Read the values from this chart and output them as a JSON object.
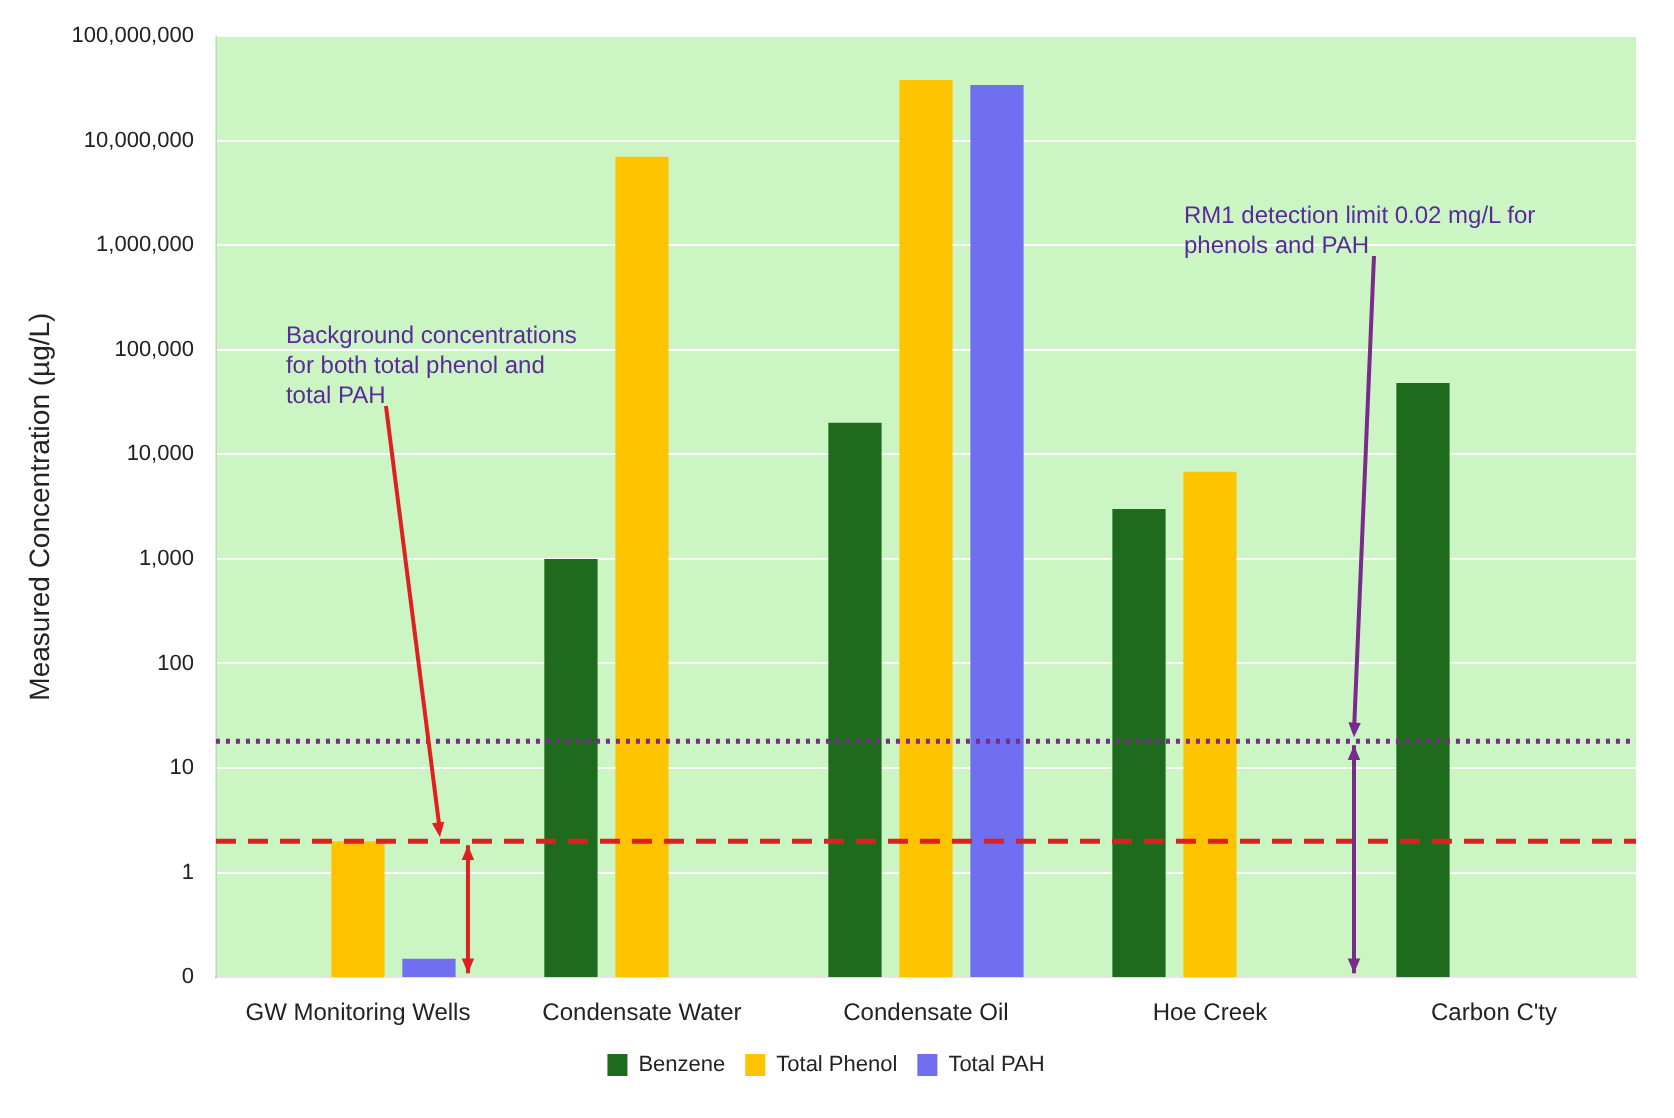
{
  "chart_data": {
    "type": "bar",
    "ylabel": "Measured Concentration (µg/L)",
    "categories": [
      "GW Monitoring Wells",
      "Condensate Water",
      "Condensate Oil",
      "Hoe Creek",
      "Carbon C'ty"
    ],
    "series": [
      {
        "name": "Benzene",
        "color": "#1e6b1e",
        "values": [
          null,
          1000,
          20000,
          3000,
          48000
        ]
      },
      {
        "name": "Total Phenol",
        "color": "#ffc400",
        "values": [
          2,
          7000000,
          38000000,
          6800,
          null
        ]
      },
      {
        "name": "Total PAH",
        "color": "#6f6ff0",
        "values": [
          0.15,
          null,
          34000000,
          null,
          null
        ]
      }
    ],
    "log": true,
    "ylim": [
      0.1,
      100000000
    ],
    "yticks": [
      {
        "value": 0.1,
        "label": "0"
      },
      {
        "value": 1,
        "label": "1"
      },
      {
        "value": 10,
        "label": "10"
      },
      {
        "value": 100,
        "label": "100"
      },
      {
        "value": 1000,
        "label": "1,000"
      },
      {
        "value": 10000,
        "label": "10,000"
      },
      {
        "value": 100000,
        "label": "100,000"
      },
      {
        "value": 1000000,
        "label": "1,000,000"
      },
      {
        "value": 10000000,
        "label": "10,000,000"
      },
      {
        "value": 100000000,
        "label": "100,000,000"
      }
    ],
    "ref_lines": [
      {
        "axis": "y",
        "value": 2,
        "color": "#e02020",
        "line_style": "dashed"
      },
      {
        "axis": "y",
        "value": 18,
        "color": "#7a2a8a",
        "line_style": "dotted"
      }
    ],
    "annotations": [
      {
        "text": "Background concentrations for both total phenol and total PAH",
        "y": 2
      },
      {
        "text": "RM1 detection limit 0.02 mg/L for phenols and PAH",
        "y": 18
      }
    ],
    "grid": "y",
    "legend": "bottom"
  }
}
